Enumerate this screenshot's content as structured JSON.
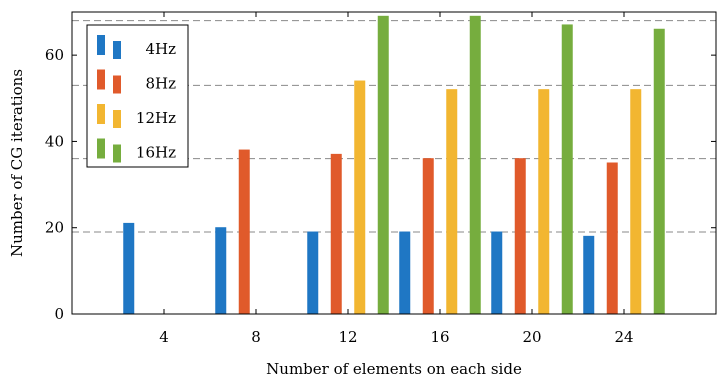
{
  "chart_data": {
    "type": "bar",
    "title": "",
    "xlabel": "Number of elements on each side",
    "ylabel": "Number of CG iterations",
    "categories": [
      "4",
      "8",
      "12",
      "16",
      "20",
      "24"
    ],
    "x_values": [
      4,
      8,
      12,
      16,
      20,
      24
    ],
    "xlim": [
      0,
      28
    ],
    "ylim": [
      0,
      70
    ],
    "yticks": [
      0,
      20,
      40,
      60
    ],
    "series": [
      {
        "name": "4Hz",
        "color": "#1f77c4",
        "values": [
          21,
          20,
          19,
          19,
          19,
          18
        ]
      },
      {
        "name": "8Hz",
        "color": "#e05a2b",
        "values": [
          null,
          38,
          37,
          36,
          36,
          35
        ]
      },
      {
        "name": "12Hz",
        "color": "#f2b631",
        "values": [
          null,
          null,
          54,
          52,
          52,
          52
        ]
      },
      {
        "name": "16Hz",
        "color": "#76ad3e",
        "values": [
          null,
          null,
          69,
          69,
          67,
          66
        ]
      }
    ],
    "reference_lines": [
      19,
      36,
      53,
      68
    ],
    "legend_position": "top-left",
    "grid": false
  }
}
